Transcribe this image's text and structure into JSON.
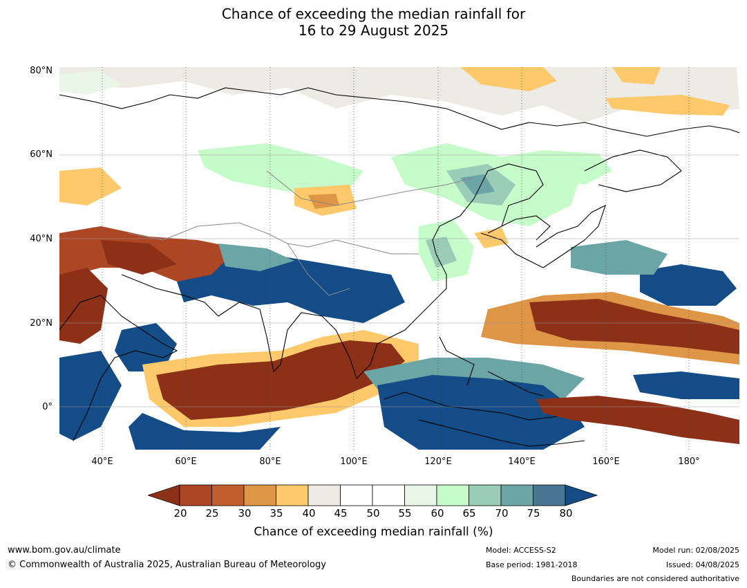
{
  "title_line1": "Chance of exceeding the median rainfall for",
  "title_line2": "16 to 29 August 2025",
  "lat_labels": [
    "80°N",
    "60°N",
    "40°N",
    "20°N",
    "0°"
  ],
  "lon_labels": [
    "40°E",
    "60°E",
    "80°E",
    "100°E",
    "120°E",
    "140°E",
    "160°E",
    "180°"
  ],
  "colorbar": {
    "ticks": [
      "20",
      "25",
      "30",
      "35",
      "40",
      "45",
      "50",
      "55",
      "60",
      "65",
      "70",
      "75",
      "80"
    ],
    "colors": [
      "#8c3018",
      "#ac4623",
      "#c35f2f",
      "#df9546",
      "#fec96a",
      "#ecebe6",
      "#ffffff",
      "#ffffff",
      "#e9f6e8",
      "#c6fcca",
      "#99cdb7",
      "#6ca5a6",
      "#497693",
      "#134c86"
    ],
    "label": "Chance of exceeding median rainfall (%)"
  },
  "footer": {
    "url": "www.bom.gov.au/climate",
    "copyright": "© Commonwealth of Australia 2025, Australian Bureau of Meteorology",
    "model": "Model: ACCESS-S2",
    "base_period": "Base period: 1981-2018",
    "model_run": "Model run: 02/08/2025",
    "issued": "Issued: 04/08/2025",
    "disclaimer": "Boundaries are not considered authoritative"
  }
}
